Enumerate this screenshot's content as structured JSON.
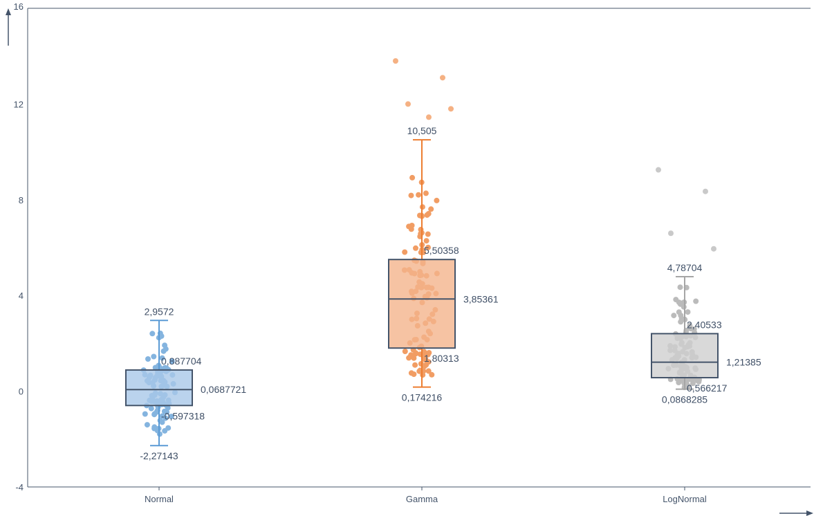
{
  "chart_data": {
    "type": "boxplot",
    "title": "",
    "xlabel": "",
    "ylabel": "",
    "ylim": [
      -4,
      16
    ],
    "yticks": [
      "-4",
      "0",
      "4",
      "8",
      "12",
      "16"
    ],
    "grid": false,
    "series": [
      {
        "category": "Normal",
        "color": "#5b9bd5",
        "box_fill": "#a9c8e8",
        "whisker_low": -2.27143,
        "q1": -0.597318,
        "median": 0.0687721,
        "q3": 0.887704,
        "whisker_high": 2.9572,
        "labels": {
          "whisker_high": "2,9572",
          "q3": "0,887704",
          "median": "0,0687721",
          "q1": "-0,597318",
          "whisker_low": "-2,27143"
        },
        "outliers": [],
        "jitter_low": -2.27,
        "jitter_high": 2.95,
        "jitter_count": 95
      },
      {
        "category": "Gamma",
        "color": "#ed7d31",
        "box_fill": "#f4b48c",
        "whisker_low": 0.174216,
        "q1": 1.80313,
        "median": 3.85361,
        "q3": 5.50358,
        "whisker_high": 10.505,
        "labels": {
          "whisker_high": "10,505",
          "q3": "5,50358",
          "median": "3,85361",
          "q1": "1,80313",
          "whisker_low": "0,174216"
        },
        "outliers": [
          13.8,
          13.1,
          12.0,
          11.8,
          11.45
        ],
        "jitter_low": 0.17,
        "jitter_high": 10.4,
        "jitter_count": 105
      },
      {
        "category": "LogNormal",
        "color": "#a5a5a5",
        "box_fill": "#cfcfcf",
        "whisker_low": 0.0868285,
        "q1": 0.566217,
        "median": 1.21385,
        "q3": 2.40533,
        "whisker_high": 4.78704,
        "labels": {
          "whisker_high": "4,78704",
          "q3": "2,40533",
          "median": "1,21385",
          "q1": "0,566217",
          "whisker_low": "0,0868285"
        },
        "outliers": [
          9.25,
          8.35,
          6.6,
          5.95
        ],
        "jitter_low": 0.09,
        "jitter_high": 4.75,
        "jitter_count": 95
      }
    ]
  }
}
